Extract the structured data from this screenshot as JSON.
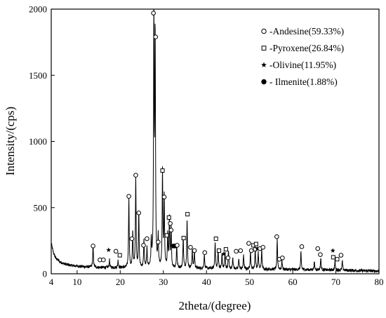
{
  "chart_data": {
    "type": "line",
    "xlabel": "2theta/(degree)",
    "ylabel": "Intensity/(cps)",
    "xlim": [
      4,
      80
    ],
    "ylim": [
      0,
      2000
    ],
    "xticks": [
      4,
      10,
      20,
      30,
      40,
      50,
      60,
      70,
      80
    ],
    "yticks": [
      0,
      500,
      1000,
      1500,
      2000
    ],
    "grid": false,
    "legend_position": "top-right",
    "colors": {
      "line": "#000000",
      "marker": "#000000",
      "axes": "#000000"
    },
    "legend": [
      {
        "marker": "open-circle",
        "label": "-Andesine(59.33%)"
      },
      {
        "marker": "open-square",
        "label": "-Pyroxene(26.84%)"
      },
      {
        "marker": "star",
        "label": "-Olivine(11.95%)"
      },
      {
        "marker": "filled-circle",
        "label": "- Ilmenite(1.88%)"
      }
    ],
    "series": [
      {
        "background": [
          [
            4,
            230
          ],
          [
            4.5,
            160
          ],
          [
            5,
            120
          ],
          [
            6,
            90
          ],
          [
            7,
            75
          ],
          [
            8,
            66
          ],
          [
            10,
            58
          ],
          [
            12,
            52
          ],
          [
            15,
            48
          ],
          [
            20,
            46
          ],
          [
            25,
            45
          ],
          [
            30,
            44
          ],
          [
            40,
            40
          ],
          [
            50,
            35
          ],
          [
            60,
            32
          ],
          [
            70,
            28
          ],
          [
            80,
            20
          ]
        ],
        "peaks": [
          [
            13.7,
            170
          ],
          [
            17.5,
            60
          ],
          [
            19.5,
            55
          ],
          [
            22.0,
            530
          ],
          [
            22.9,
            270
          ],
          [
            23.6,
            690
          ],
          [
            24.3,
            420
          ],
          [
            25.5,
            210
          ],
          [
            26.2,
            140
          ],
          [
            27.2,
            190
          ],
          [
            27.8,
            1920
          ],
          [
            28.1,
            1740
          ],
          [
            28.8,
            220
          ],
          [
            29.8,
            720
          ],
          [
            30.2,
            530
          ],
          [
            31.0,
            250
          ],
          [
            31.4,
            380
          ],
          [
            31.8,
            300
          ],
          [
            33.1,
            180
          ],
          [
            34.6,
            240
          ],
          [
            35.5,
            370
          ],
          [
            36.7,
            140
          ],
          [
            37.2,
            130
          ],
          [
            39.5,
            110
          ],
          [
            42.0,
            200
          ],
          [
            42.7,
            150
          ],
          [
            43.6,
            110
          ],
          [
            44.3,
            120
          ],
          [
            45.1,
            140
          ],
          [
            46.1,
            90
          ],
          [
            47.5,
            80
          ],
          [
            48.6,
            110
          ],
          [
            50.2,
            140
          ],
          [
            51.3,
            160
          ],
          [
            52.0,
            130
          ],
          [
            52.8,
            150
          ],
          [
            56.4,
            220
          ],
          [
            57.5,
            70
          ],
          [
            61.9,
            130
          ],
          [
            65.0,
            60
          ],
          [
            66.5,
            90
          ],
          [
            69.8,
            70
          ],
          [
            71.5,
            70
          ]
        ]
      }
    ],
    "markers": [
      {
        "type": "open-circle",
        "x": 13.7,
        "y": 210
      },
      {
        "type": "open-circle",
        "x": 15.3,
        "y": 105
      },
      {
        "type": "open-circle",
        "x": 16.1,
        "y": 105
      },
      {
        "type": "star",
        "x": 17.3,
        "y": 180
      },
      {
        "type": "open-circle",
        "x": 19.0,
        "y": 170
      },
      {
        "type": "open-square",
        "x": 19.9,
        "y": 140
      },
      {
        "type": "open-circle",
        "x": 22.0,
        "y": 585
      },
      {
        "type": "open-circle",
        "x": 22.7,
        "y": 265
      },
      {
        "type": "open-circle",
        "x": 23.6,
        "y": 745
      },
      {
        "type": "open-circle",
        "x": 24.3,
        "y": 460
      },
      {
        "type": "open-circle",
        "x": 25.4,
        "y": 215
      },
      {
        "type": "open-circle",
        "x": 26.2,
        "y": 265
      },
      {
        "type": "open-circle",
        "x": 27.7,
        "y": 1970
      },
      {
        "type": "open-circle",
        "x": 28.2,
        "y": 1790
      },
      {
        "type": "open-circle",
        "x": 28.8,
        "y": 240
      },
      {
        "type": "open-square",
        "x": 29.8,
        "y": 780
      },
      {
        "type": "open-circle",
        "x": 30.2,
        "y": 580
      },
      {
        "type": "open-square",
        "x": 30.8,
        "y": 290
      },
      {
        "type": "open-square",
        "x": 31.3,
        "y": 425
      },
      {
        "type": "open-circle",
        "x": 31.6,
        "y": 380
      },
      {
        "type": "open-circle",
        "x": 31.8,
        "y": 330
      },
      {
        "type": "filled-circle",
        "x": 32.3,
        "y": 210
      },
      {
        "type": "filled-circle",
        "x": 32.7,
        "y": 210
      },
      {
        "type": "open-circle",
        "x": 33.2,
        "y": 215
      },
      {
        "type": "open-square",
        "x": 34.7,
        "y": 270
      },
      {
        "type": "open-square",
        "x": 35.6,
        "y": 450
      },
      {
        "type": "open-circle",
        "x": 36.3,
        "y": 200
      },
      {
        "type": "open-circle",
        "x": 37.2,
        "y": 175
      },
      {
        "type": "open-circle",
        "x": 39.6,
        "y": 160
      },
      {
        "type": "open-square",
        "x": 42.2,
        "y": 265
      },
      {
        "type": "open-square",
        "x": 42.9,
        "y": 175
      },
      {
        "type": "star",
        "x": 44.0,
        "y": 150
      },
      {
        "type": "open-square",
        "x": 44.5,
        "y": 185
      },
      {
        "type": "open-circle",
        "x": 45.0,
        "y": 120
      },
      {
        "type": "open-circle",
        "x": 46.9,
        "y": 170
      },
      {
        "type": "open-circle",
        "x": 47.9,
        "y": 175
      },
      {
        "type": "open-circle",
        "x": 49.8,
        "y": 230
      },
      {
        "type": "open-circle",
        "x": 50.4,
        "y": 175
      },
      {
        "type": "open-square",
        "x": 50.9,
        "y": 215
      },
      {
        "type": "open-square",
        "x": 51.5,
        "y": 225
      },
      {
        "type": "open-circle",
        "x": 51.3,
        "y": 185
      },
      {
        "type": "star",
        "x": 51.8,
        "y": 190
      },
      {
        "type": "open-circle",
        "x": 52.4,
        "y": 190
      },
      {
        "type": "open-circle",
        "x": 53.1,
        "y": 200
      },
      {
        "type": "open-circle",
        "x": 56.3,
        "y": 280
      },
      {
        "type": "open-circle",
        "x": 56.9,
        "y": 110
      },
      {
        "type": "open-circle",
        "x": 57.6,
        "y": 120
      },
      {
        "type": "open-circle",
        "x": 62.1,
        "y": 205
      },
      {
        "type": "open-circle",
        "x": 65.8,
        "y": 190
      },
      {
        "type": "open-circle",
        "x": 66.4,
        "y": 145
      },
      {
        "type": "star",
        "x": 69.3,
        "y": 175
      },
      {
        "type": "open-square",
        "x": 69.4,
        "y": 125
      },
      {
        "type": "open-square",
        "x": 70.3,
        "y": 110
      },
      {
        "type": "open-circle",
        "x": 71.2,
        "y": 140
      }
    ]
  }
}
